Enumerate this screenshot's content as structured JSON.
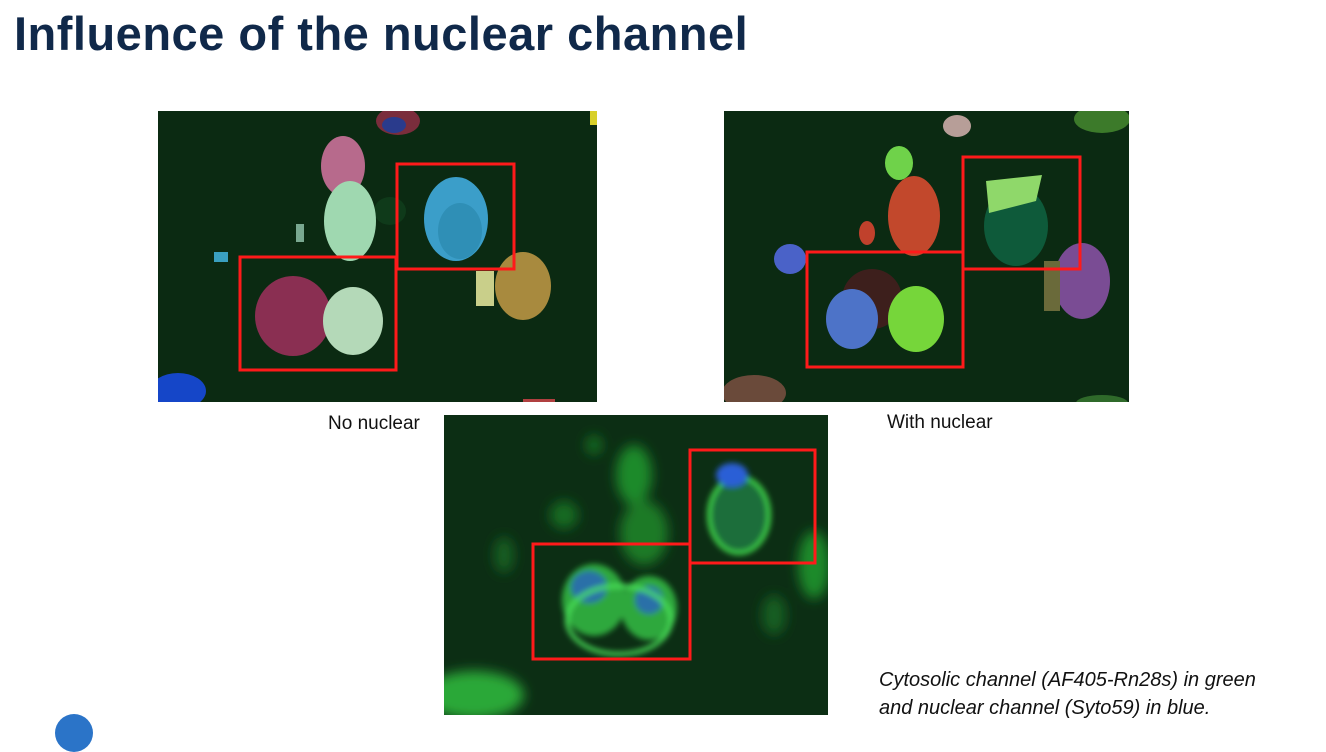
{
  "slide": {
    "title": "Influence of the nuclear channel",
    "caption_left": "No nuclear",
    "caption_right": "With nuclear",
    "note_line1": "Cytosolic channel (AF405-Rn28s) in green",
    "note_line2": "and nuclear channel (Syto59) in blue."
  },
  "colors": {
    "title": "#10294a",
    "highlight_box": "#ff1a1a",
    "background_tissue": "#0b2a12",
    "cytosolic": "#3fd64a",
    "nuclear": "#2c5fd6"
  }
}
